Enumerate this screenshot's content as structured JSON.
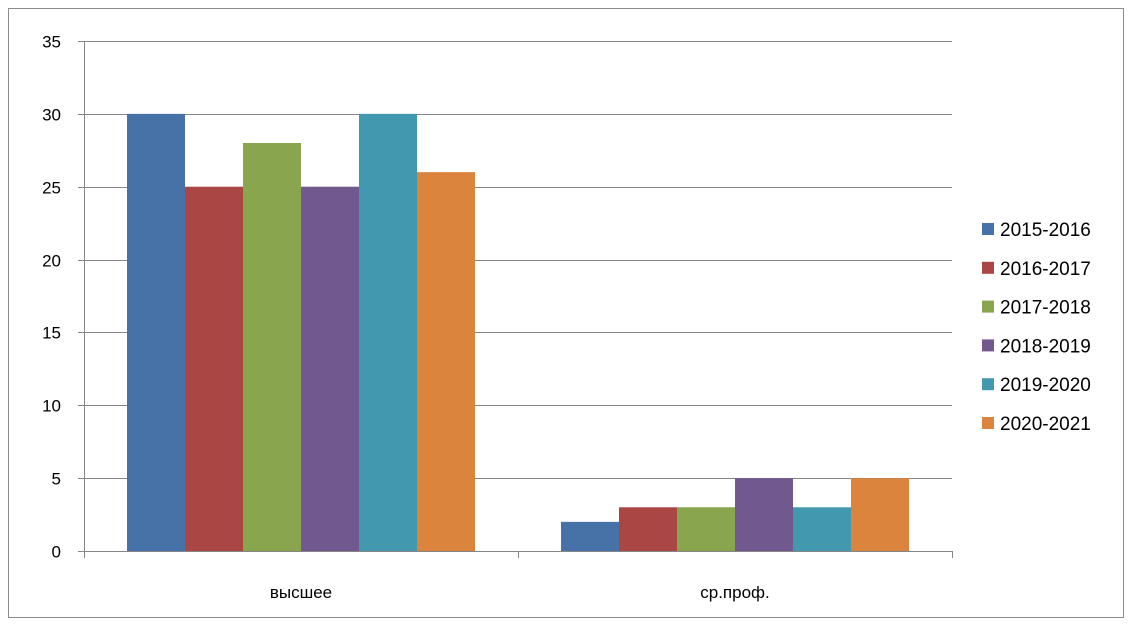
{
  "chart_data": {
    "type": "bar",
    "title": "",
    "xlabel": "",
    "ylabel": "",
    "categories": [
      "высшее",
      "ср.проф."
    ],
    "series": [
      {
        "name": "2015-2016",
        "values": [
          30,
          2
        ],
        "color": "#4672A8"
      },
      {
        "name": "2016-2017",
        "values": [
          25,
          3
        ],
        "color": "#AA4643"
      },
      {
        "name": "2017-2018",
        "values": [
          28,
          3
        ],
        "color": "#89A54E"
      },
      {
        "name": "2018-2019",
        "values": [
          25,
          5
        ],
        "color": "#71588F"
      },
      {
        "name": "2019-2020",
        "values": [
          30,
          3
        ],
        "color": "#4198AF"
      },
      {
        "name": "2020-2021",
        "values": [
          26,
          5
        ],
        "color": "#DB843D"
      }
    ],
    "ylim": [
      0,
      35
    ],
    "yticks": [
      0,
      5,
      10,
      15,
      20,
      25,
      30,
      35
    ],
    "grid": true,
    "legend_position": "right"
  }
}
